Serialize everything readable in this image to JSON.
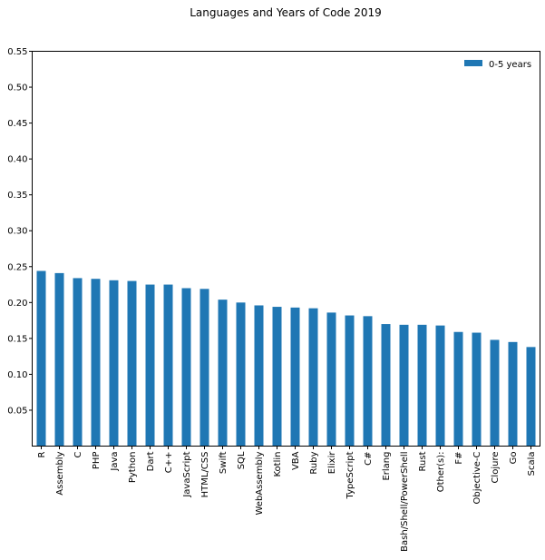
{
  "chart_data": {
    "type": "bar",
    "title": "Languages and Years of Code 2019",
    "xlabel": "",
    "ylabel": "",
    "ylim": [
      0,
      0.55
    ],
    "yticks": [
      0.05,
      0.1,
      0.15,
      0.2,
      0.25,
      0.3,
      0.35,
      0.4,
      0.45,
      0.5,
      0.55
    ],
    "ytick_labels": [
      "0.05",
      "0.10",
      "0.15",
      "0.20",
      "0.25",
      "0.30",
      "0.35",
      "0.40",
      "0.45",
      "0.50",
      "0.55"
    ],
    "grid": false,
    "legend_position": "top-right",
    "categories": [
      "R",
      "Assembly",
      "C",
      "PHP",
      "Java",
      "Python",
      "Dart",
      "C++",
      "JavaScript",
      "HTML/CSS",
      "Swift",
      "SQL",
      "WebAssembly",
      "Kotlin",
      "VBA",
      "Ruby",
      "Elixir",
      "TypeScript",
      "C#",
      "Erlang",
      "Bash/Shell/PowerShell",
      "Rust",
      "Other(s):",
      "F#",
      "Objective-C",
      "Clojure",
      "Go",
      "Scala"
    ],
    "series": [
      {
        "name": "0-5 years",
        "color": "#1f77b4",
        "values": [
          0.244,
          0.241,
          0.234,
          0.233,
          0.231,
          0.23,
          0.225,
          0.225,
          0.22,
          0.219,
          0.204,
          0.2,
          0.196,
          0.194,
          0.193,
          0.192,
          0.186,
          0.182,
          0.181,
          0.17,
          0.169,
          0.169,
          0.168,
          0.159,
          0.158,
          0.148,
          0.145,
          0.138
        ]
      }
    ]
  }
}
